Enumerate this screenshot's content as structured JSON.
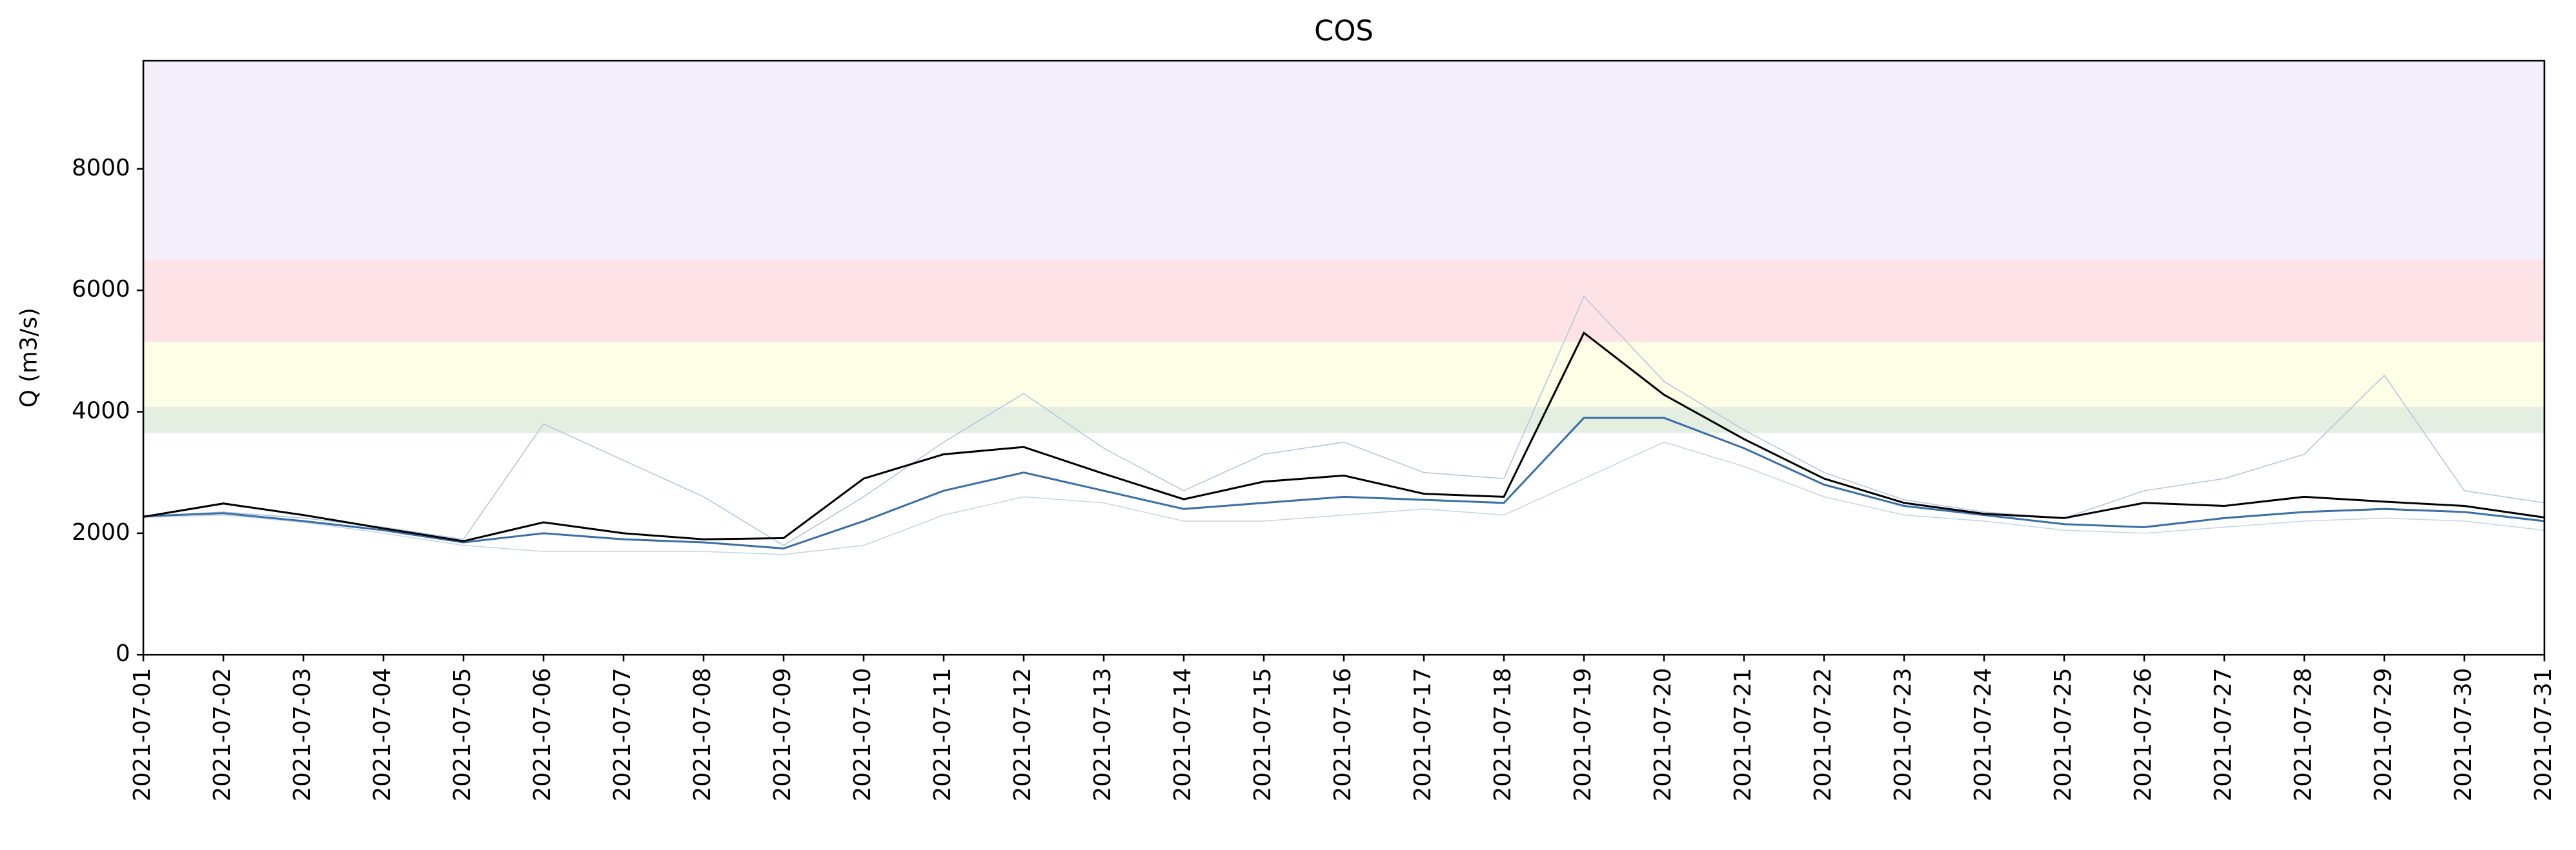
{
  "chart_data": {
    "type": "line",
    "title": "COS",
    "y_label": "Q (m3/s)",
    "x": [
      "2021-07-01",
      "2021-07-02",
      "2021-07-03",
      "2021-07-04",
      "2021-07-05",
      "2021-07-06",
      "2021-07-07",
      "2021-07-08",
      "2021-07-09",
      "2021-07-10",
      "2021-07-11",
      "2021-07-12",
      "2021-07-13",
      "2021-07-14",
      "2021-07-15",
      "2021-07-16",
      "2021-07-17",
      "2021-07-18",
      "2021-07-19",
      "2021-07-20",
      "2021-07-21",
      "2021-07-22",
      "2021-07-23",
      "2021-07-24",
      "2021-07-25",
      "2021-07-26",
      "2021-07-27",
      "2021-07-28",
      "2021-07-29",
      "2021-07-30",
      "2021-07-31"
    ],
    "series": [
      {
        "color": "#b0c4de",
        "width": 0.6,
        "values": [
          2280,
          2350,
          2250,
          2100,
          1900,
          3800,
          3200,
          2600,
          1800,
          2600,
          3500,
          4300,
          3400,
          2700,
          3300,
          3500,
          3000,
          2900,
          5900,
          4500,
          3700,
          3000,
          2550,
          2350,
          2250,
          2700,
          2900,
          3300,
          4600,
          2700,
          2500
        ]
      },
      {
        "color": "#c6d4e6",
        "width": 0.6,
        "values": [
          2260,
          2300,
          2180,
          2000,
          1800,
          1700,
          1700,
          1700,
          1650,
          1800,
          2300,
          2600,
          2500,
          2200,
          2200,
          2300,
          2400,
          2300,
          2900,
          3500,
          3100,
          2600,
          2300,
          2200,
          2050,
          2000,
          2100,
          2200,
          2250,
          2200,
          2050
        ]
      },
      {
        "color": "#3a6fa8",
        "width": 1.2,
        "values": [
          2280,
          2330,
          2200,
          2050,
          1850,
          2000,
          1900,
          1850,
          1750,
          2200,
          2700,
          3000,
          2700,
          2400,
          2500,
          2600,
          2550,
          2500,
          3900,
          3900,
          3400,
          2800,
          2450,
          2300,
          2150,
          2100,
          2250,
          2350,
          2400,
          2350,
          2200
        ]
      },
      {
        "color": "#000000",
        "width": 1.2,
        "values": [
          2270,
          2490,
          2300,
          2080,
          1870,
          2180,
          2000,
          1900,
          1920,
          2900,
          3300,
          3420,
          2980,
          2560,
          2850,
          2950,
          2650,
          2600,
          5300,
          4280,
          3550,
          2900,
          2500,
          2320,
          2250,
          2500,
          2450,
          2600,
          2520,
          2450,
          2260
        ]
      }
    ],
    "bands": [
      {
        "from": 6500,
        "to": 9780,
        "color": "#f2eefa"
      },
      {
        "from": 5150,
        "to": 6500,
        "color": "#fde3e6"
      },
      {
        "from": 4080,
        "to": 5150,
        "color": "#fefde6"
      },
      {
        "from": 3650,
        "to": 4080,
        "color": "#e4efe2"
      }
    ],
    "ylim": [
      0,
      9780
    ],
    "yticks": [
      0,
      2000,
      4000,
      6000,
      8000
    ],
    "grid": false
  }
}
